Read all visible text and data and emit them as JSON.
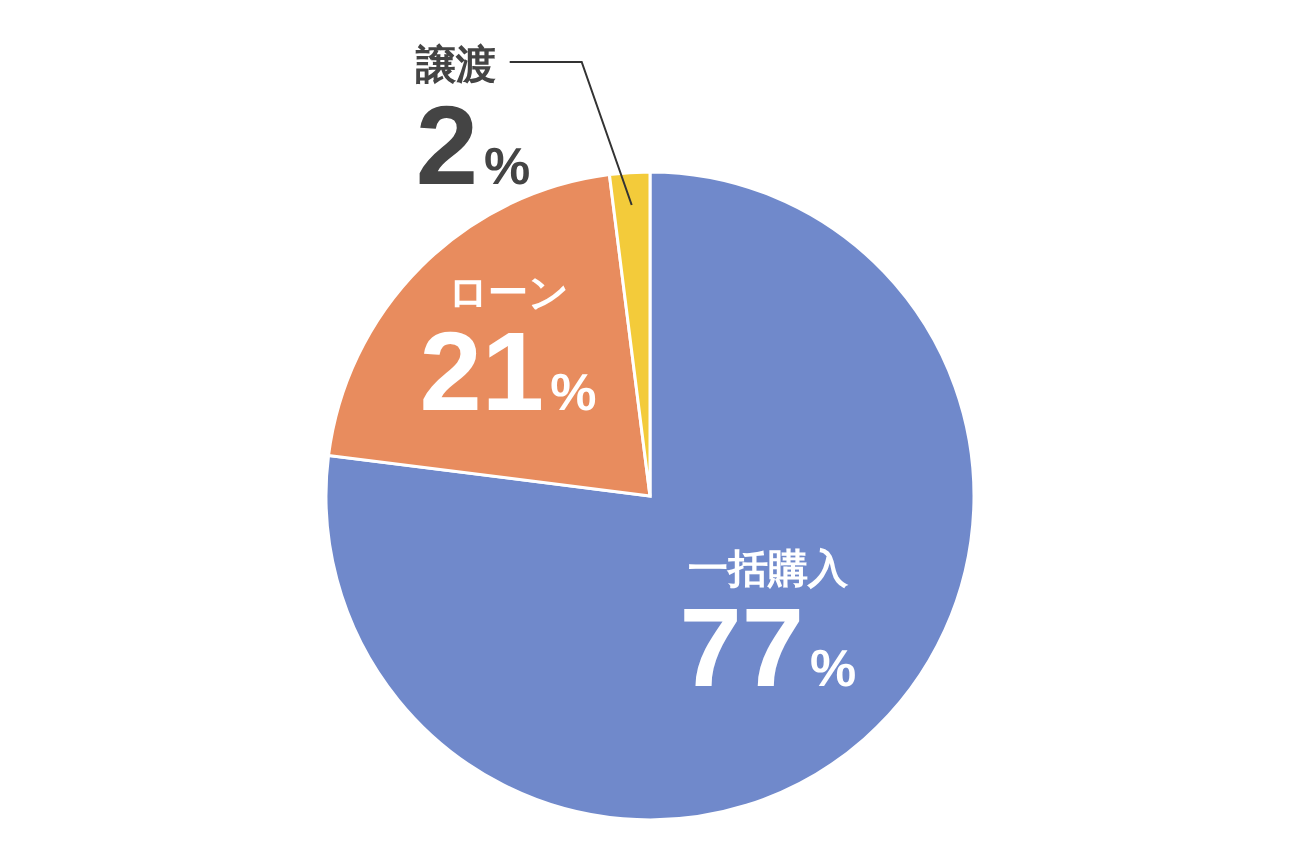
{
  "chart_data": {
    "type": "pie",
    "categories": [
      "一括購入",
      "ローン",
      "譲渡"
    ],
    "values": [
      77,
      21,
      2
    ],
    "colors": [
      "#7089cb",
      "#e88c5e",
      "#f3cb3a"
    ],
    "value_labels": [
      "77%",
      "21%",
      "2%"
    ]
  }
}
